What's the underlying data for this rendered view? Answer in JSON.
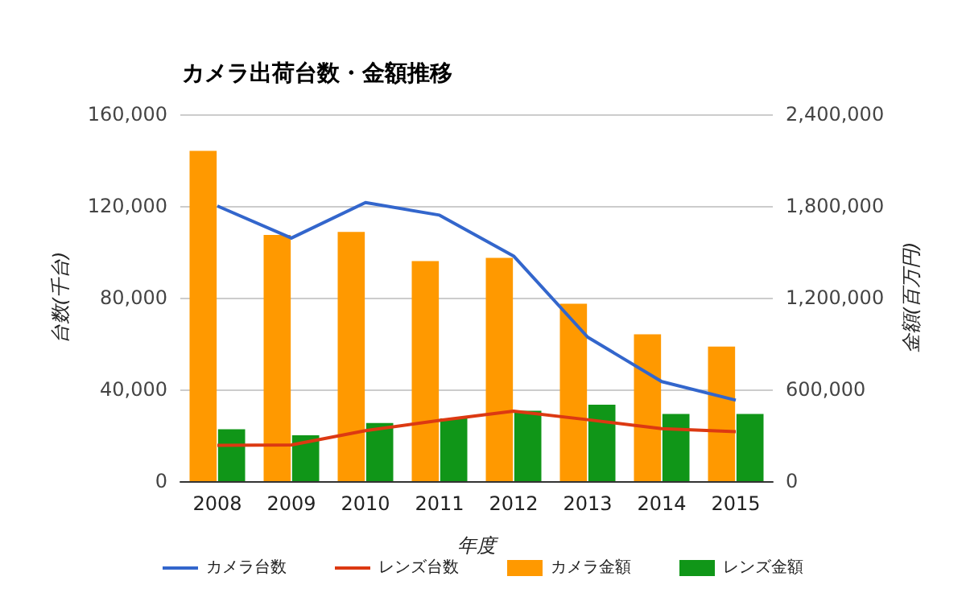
{
  "chart_data": {
    "type": "bar",
    "title": "カメラ出荷台数・金額推移",
    "xlabel": "年度",
    "ylabel": "台数(千台)",
    "y2label": "金額(百万円)",
    "categories": [
      "2008",
      "2009",
      "2010",
      "2011",
      "2012",
      "2013",
      "2014",
      "2015"
    ],
    "series": [
      {
        "name": "カメラ台数",
        "type": "line",
        "color": "#3366cc",
        "values": [
          120000,
          106000,
          121500,
          116000,
          98200,
          62800,
          43400,
          35300
        ]
      },
      {
        "name": "レンズ台数",
        "type": "line",
        "color": "#dc3912",
        "values": [
          15600,
          15800,
          22000,
          26500,
          30500,
          26800,
          22900,
          21600
        ]
      },
      {
        "name": "カメラ金額",
        "type": "bar",
        "axis": "y2",
        "color": "#ff9900",
        "values": [
          2160000,
          1610000,
          1630000,
          1440000,
          1460000,
          1160000,
          960000,
          880000
        ]
      },
      {
        "name": "レンズ金額",
        "type": "bar",
        "axis": "y2",
        "color": "#109618",
        "values": [
          340000,
          300000,
          380000,
          410000,
          460000,
          500000,
          440000,
          440000
        ]
      }
    ],
    "ylim": [
      0,
      160000
    ],
    "yticks": [
      0,
      {
        "value": 40000,
        "label": "40,000"
      },
      {
        "value": 80000,
        "label": "80,000"
      },
      {
        "value": 120000,
        "label": "120,000"
      },
      {
        "value": 160000,
        "label": "160,000"
      }
    ],
    "y2lim": [
      0,
      2400000
    ],
    "y2ticks": [
      0,
      {
        "value": 600000,
        "label": "600,000"
      },
      {
        "value": 1200000,
        "label": "1,200,000"
      },
      {
        "value": 1800000,
        "label": "1,800,000"
      },
      {
        "value": 2400000,
        "label": "2,400,000"
      }
    ],
    "grid": "y",
    "legend": "bottom",
    "marker": "none",
    "line_style": "solid"
  }
}
